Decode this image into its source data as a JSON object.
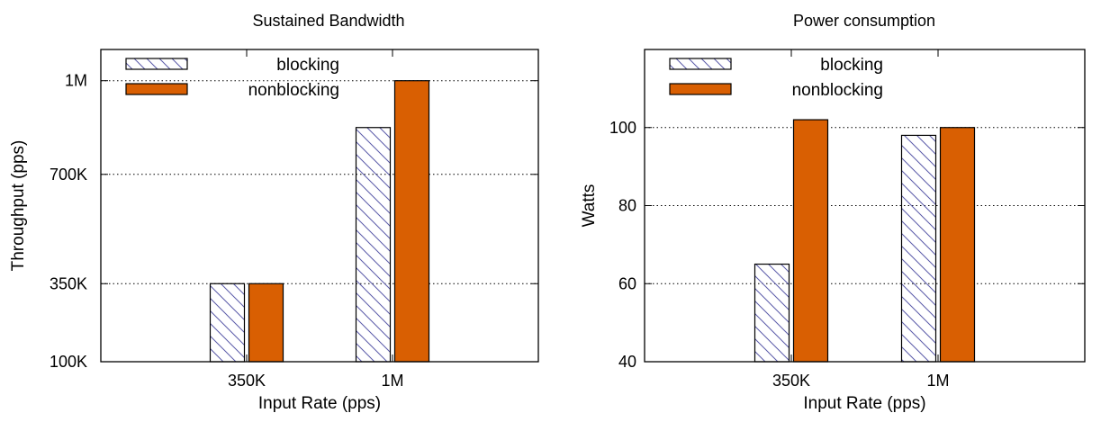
{
  "chart_data": [
    {
      "type": "bar",
      "title": "Sustained Bandwidth",
      "xlabel": "Input Rate (pps)",
      "ylabel": "Throughput (pps)",
      "categories": [
        "350K",
        "1M"
      ],
      "series": [
        {
          "name": "blocking",
          "values": [
            350000,
            850000
          ],
          "style": "hatch",
          "color": "#5a5aa8"
        },
        {
          "name": "nonblocking",
          "values": [
            350000,
            1000000
          ],
          "style": "solid",
          "color": "#d95f02"
        }
      ],
      "ylim": [
        100000,
        1100000
      ],
      "yticks": [
        100000,
        350000,
        700000,
        1000000
      ],
      "ytick_labels": [
        "100K",
        "350K",
        "700K",
        "1M"
      ],
      "grid": "horizontal-dotted",
      "legend_position": "top-left"
    },
    {
      "type": "bar",
      "title": "Power consumption",
      "xlabel": "Input Rate (pps)",
      "ylabel": "Watts",
      "categories": [
        "350K",
        "1M"
      ],
      "series": [
        {
          "name": "blocking",
          "values": [
            65,
            98
          ],
          "style": "hatch",
          "color": "#5a5aa8"
        },
        {
          "name": "nonblocking",
          "values": [
            102,
            100
          ],
          "style": "solid",
          "color": "#d95f02"
        }
      ],
      "ylim": [
        40,
        120
      ],
      "yticks": [
        40,
        60,
        80,
        100
      ],
      "ytick_labels": [
        "40",
        "60",
        "80",
        "100"
      ],
      "grid": "horizontal-dotted",
      "legend_position": "top-left"
    }
  ]
}
